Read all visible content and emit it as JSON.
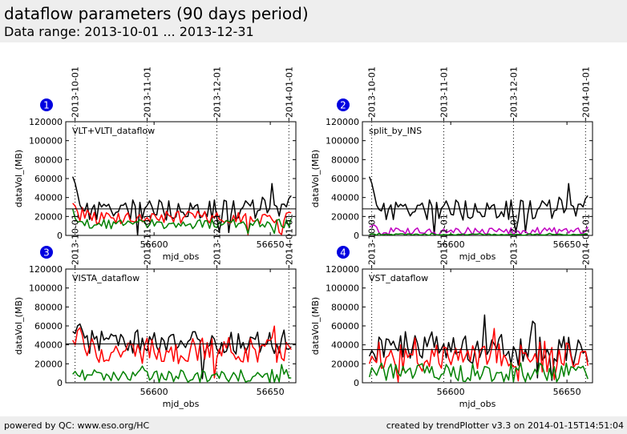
{
  "page": {
    "title": "dataflow parameters (90 days period)",
    "subtitle": "Data range: 2013-10-01 ... 2013-12-31",
    "footer_left": "powered by QC: www.eso.org/HC",
    "footer_right": "created by trendPlotter v3.3 on 2014-01-15T14:51:04"
  },
  "colors": {
    "black": "#000000",
    "red": "#ff0000",
    "green": "#008000",
    "magenta": "#c000c0",
    "badge": "#0000e0"
  },
  "chart_data": [
    {
      "type": "line",
      "badge": "1",
      "label": "VLT+VLTI_dataflow",
      "xlabel": "mjd_obs",
      "ylabel": "dataVol_(MB)",
      "xlim": [
        56562,
        56661
      ],
      "ylim": [
        0,
        120000
      ],
      "xticks": [
        56600,
        56650
      ],
      "yticks": [
        0,
        20000,
        40000,
        60000,
        80000,
        100000,
        120000
      ],
      "date_markers": [
        {
          "label": "2013-10-01",
          "x": 56566
        },
        {
          "label": "2013-11-01",
          "x": 56597
        },
        {
          "label": "2013-12-01",
          "x": 56627
        },
        {
          "label": "2014-01-01",
          "x": 56658
        }
      ],
      "hline": 28000,
      "series": [
        {
          "color": "black",
          "base": 27000,
          "amp": 11000,
          "first": [
            62000,
            55000,
            44000,
            32000
          ],
          "last": 42000,
          "seed": 11
        },
        {
          "color": "red",
          "base": 19000,
          "amp": 7000,
          "first": [
            34000,
            31000,
            25000
          ],
          "last": 24000,
          "seed": 12
        },
        {
          "color": "green",
          "base": 12000,
          "amp": 5000,
          "first": [
            28000,
            18000,
            14000
          ],
          "last": 18000,
          "seed": 13
        }
      ]
    },
    {
      "type": "line",
      "badge": "2",
      "label": "split_by_INS",
      "xlabel": "mjd_obs",
      "ylabel": "dataVol_(MB)",
      "xlim": [
        56562,
        56661
      ],
      "ylim": [
        0,
        120000
      ],
      "xticks": [
        56600,
        56650
      ],
      "yticks": [
        0,
        20000,
        40000,
        60000,
        80000,
        100000,
        120000
      ],
      "date_markers": [
        {
          "label": "2013-10-01",
          "x": 56566
        },
        {
          "label": "2013-11-01",
          "x": 56597
        },
        {
          "label": "2013-12-01",
          "x": 56627
        },
        {
          "label": "2014-01-01",
          "x": 56658
        }
      ],
      "hline": 28000,
      "series": [
        {
          "color": "black",
          "base": 27000,
          "amp": 11000,
          "first": [
            62000,
            55000,
            44000,
            32000
          ],
          "last": 42000,
          "seed": 11
        },
        {
          "color": "magenta",
          "base": 4500,
          "amp": 4000,
          "first": [
            9000,
            10000,
            11000,
            9000
          ],
          "last": 9000,
          "seed": 21
        },
        {
          "color": "green",
          "base": 1000,
          "amp": 700,
          "first": [
            1000,
            1500
          ],
          "last": 1200,
          "seed": 22
        }
      ]
    },
    {
      "type": "line",
      "badge": "3",
      "label": "VISTA_dataflow",
      "xlabel": "mjd_obs",
      "ylabel": "dataVol_(MB)",
      "xlim": [
        56562,
        56661
      ],
      "ylim": [
        0,
        120000
      ],
      "xticks": [
        56600,
        56650
      ],
      "yticks": [
        0,
        20000,
        40000,
        60000,
        80000,
        100000,
        120000
      ],
      "date_markers": [
        {
          "label": "2013-10-01",
          "x": 56566
        },
        {
          "label": "2013-11-01",
          "x": 56597
        },
        {
          "label": "2013-12-01",
          "x": 56627
        },
        {
          "label": "2014-01-01",
          "x": 56658
        }
      ],
      "hline": 41000,
      "series": [
        {
          "color": "black",
          "base": 42000,
          "amp": 12000,
          "first": [
            54000,
            52000,
            60000,
            62000,
            55000
          ],
          "last": 38000,
          "seed": 31
        },
        {
          "color": "red",
          "base": 34000,
          "amp": 14000,
          "first": [
            45000,
            40000,
            55000,
            58000,
            50000
          ],
          "last": 35000,
          "seed": 32
        },
        {
          "color": "green",
          "base": 7000,
          "amp": 7000,
          "first": [
            9000,
            12000,
            8000
          ],
          "last": 5000,
          "seed": 33
        }
      ]
    },
    {
      "type": "line",
      "badge": "4",
      "label": "VST_dataflow",
      "xlabel": "mjd_obs",
      "ylabel": "dataVol_(MB)",
      "xlim": [
        56562,
        56661
      ],
      "ylim": [
        0,
        120000
      ],
      "xticks": [
        56600,
        56650
      ],
      "yticks": [
        0,
        20000,
        40000,
        60000,
        80000,
        100000,
        120000
      ],
      "date_markers": [
        {
          "label": "2013-10-01",
          "x": 56566
        },
        {
          "label": "2013-11-01",
          "x": 56597
        },
        {
          "label": "2013-12-01",
          "x": 56627
        },
        {
          "label": "2014-01-01",
          "x": 56658
        }
      ],
      "hline": 35000,
      "series": [
        {
          "color": "black",
          "base": 36000,
          "amp": 18000,
          "first": [
            28000,
            34000,
            30000
          ],
          "last": 22000,
          "seed": 41
        },
        {
          "color": "red",
          "base": 27000,
          "amp": 16000,
          "first": [
            20000,
            28000,
            24000
          ],
          "last": 18000,
          "seed": 42
        },
        {
          "color": "green",
          "base": 11000,
          "amp": 10000,
          "first": [
            6000,
            16000,
            12000
          ],
          "last": 4000,
          "seed": 43
        }
      ]
    }
  ]
}
